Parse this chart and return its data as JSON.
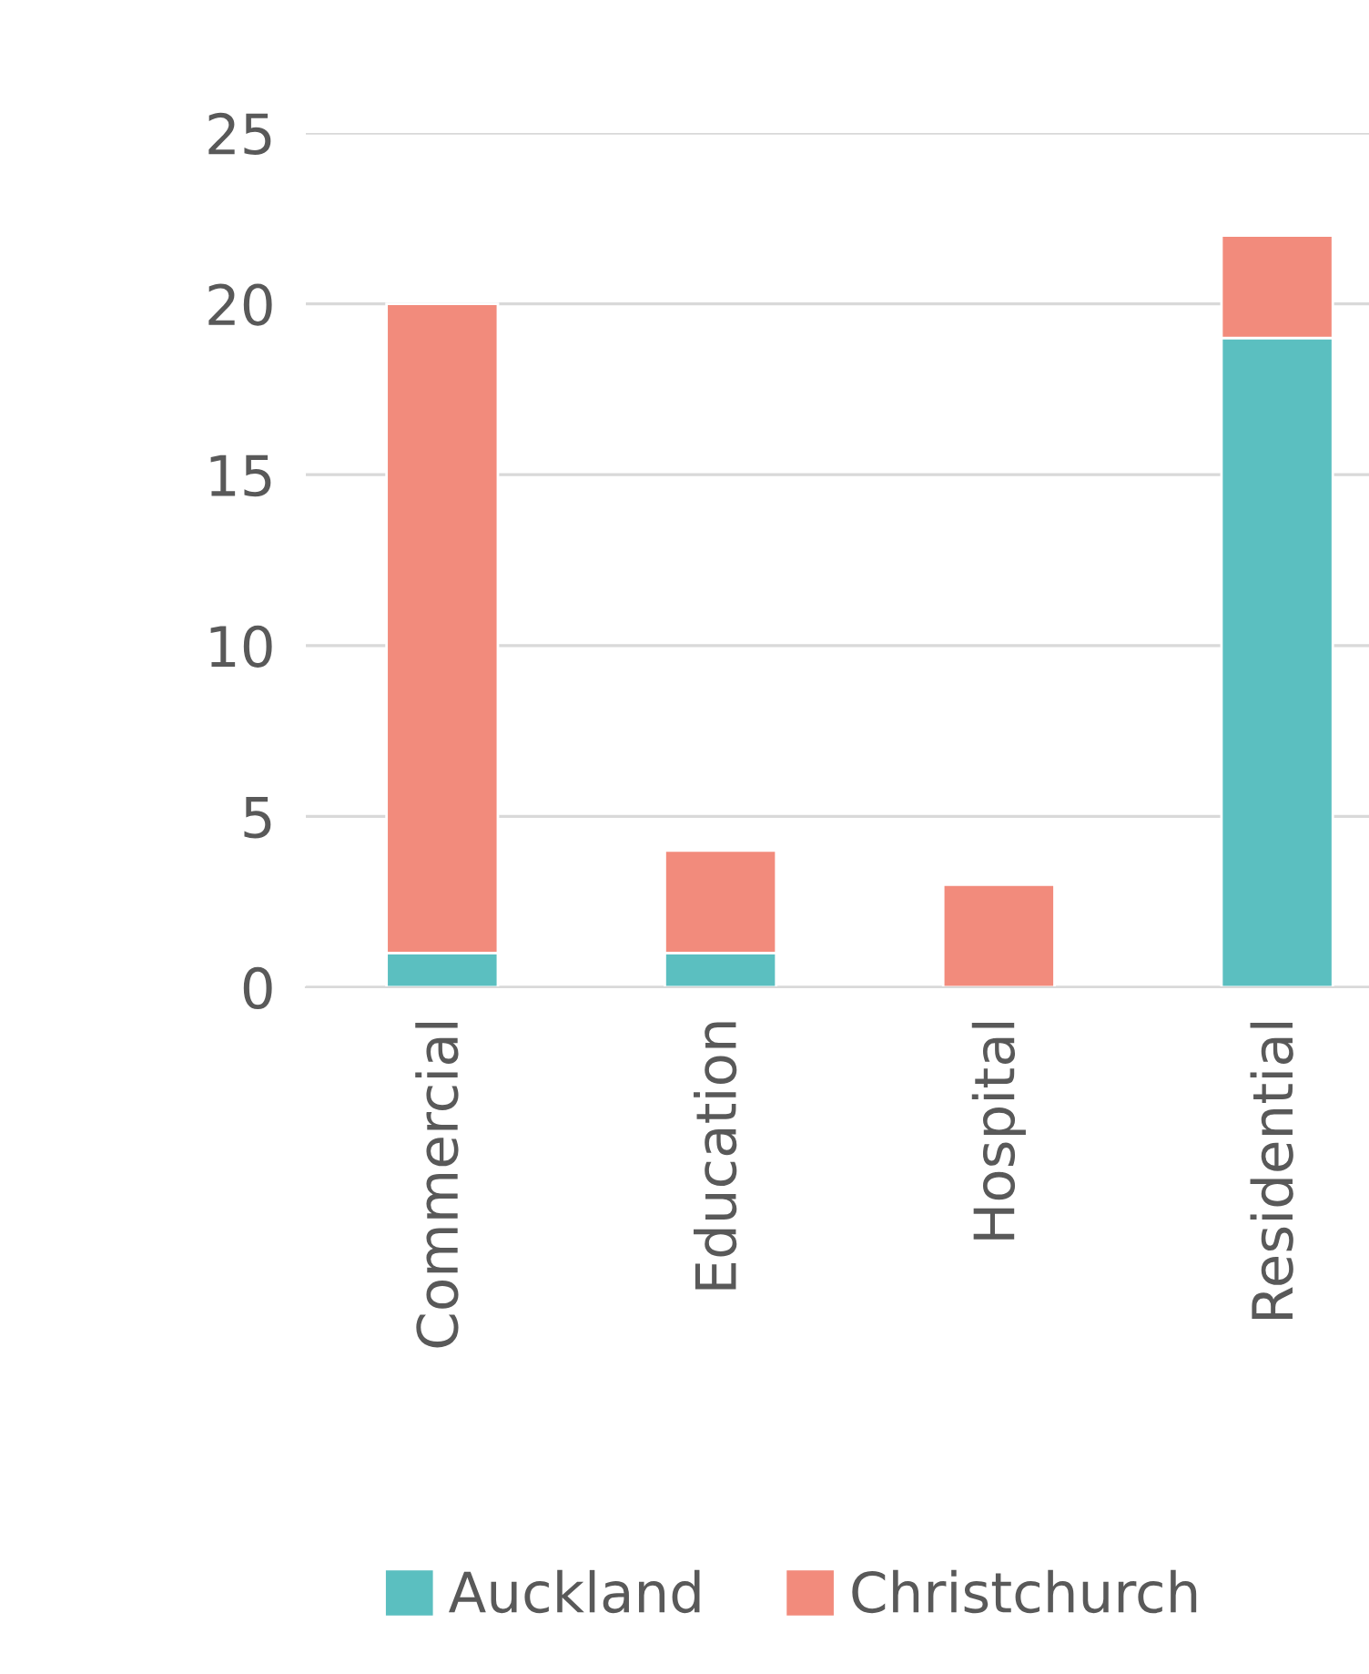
{
  "chart_data": {
    "type": "bar",
    "stacked": true,
    "categories": [
      "Commercial",
      "Education",
      "Hospital",
      "Residential"
    ],
    "series": [
      {
        "name": "Auckland",
        "color": "#5bbfc0",
        "values": [
          1,
          1,
          0,
          19
        ]
      },
      {
        "name": "Christchurch",
        "color": "#f28b7c",
        "values": [
          19,
          3,
          3,
          3
        ]
      }
    ],
    "ylim": [
      0,
      25
    ],
    "yticks": [
      0,
      5,
      10,
      15,
      20,
      25
    ],
    "grid": "y",
    "legend": "bottom"
  }
}
